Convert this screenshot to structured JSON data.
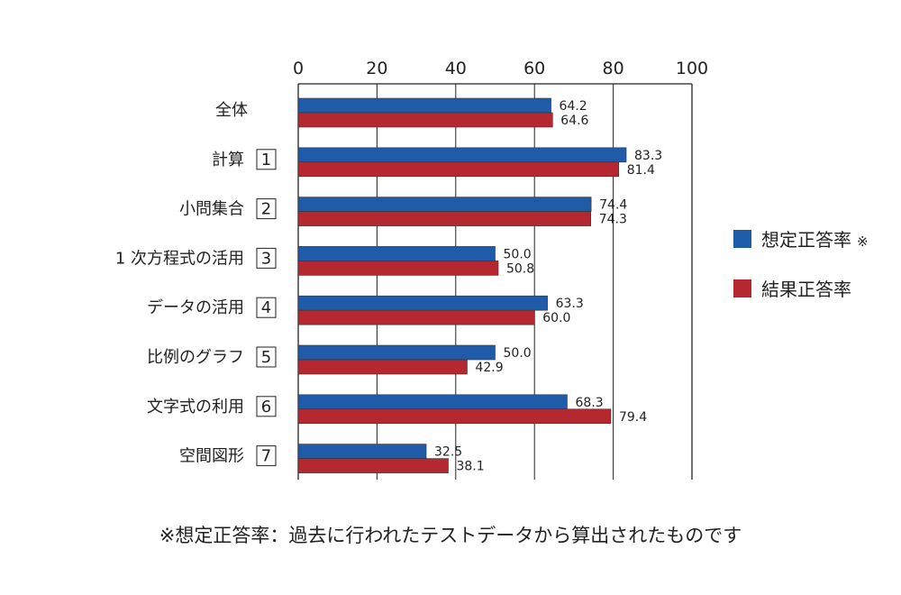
{
  "chart_data": {
    "type": "bar",
    "orientation": "horizontal",
    "xlim": [
      0,
      100
    ],
    "x_ticks": [
      "0",
      "20",
      "40",
      "60",
      "80",
      "100"
    ],
    "grid": true,
    "legend_position": "right",
    "categories": [
      {
        "name": "全体",
        "badge": ""
      },
      {
        "name": "計算",
        "badge": "1"
      },
      {
        "name": "小問集合",
        "badge": "2"
      },
      {
        "name": "1 次方程式の活用",
        "badge": "3"
      },
      {
        "name": "データの活用",
        "badge": "4"
      },
      {
        "name": "比例のグラフ",
        "badge": "5"
      },
      {
        "name": "文字式の利用",
        "badge": "6"
      },
      {
        "name": "空間図形",
        "badge": "7"
      }
    ],
    "series": [
      {
        "name": "想定正答率",
        "marker": "※",
        "color": "#1f5ba8",
        "values": [
          64.2,
          83.3,
          74.4,
          50.0,
          63.3,
          50.0,
          68.3,
          32.5
        ],
        "labels": [
          "64.2",
          "83.3",
          "74.4",
          "50.0",
          "63.3",
          "50.0",
          "68.3",
          "32.5"
        ]
      },
      {
        "name": "結果正答率",
        "marker": "",
        "color": "#b5282f",
        "values": [
          64.6,
          81.4,
          74.3,
          50.8,
          60.0,
          42.9,
          79.4,
          38.1
        ],
        "labels": [
          "64.6",
          "81.4",
          "74.3",
          "50.8",
          "60.0",
          "42.9",
          "79.4",
          "38.1"
        ]
      }
    ],
    "footnote": "※想定正答率：過去に行われたテストデータから算出されたものです"
  }
}
